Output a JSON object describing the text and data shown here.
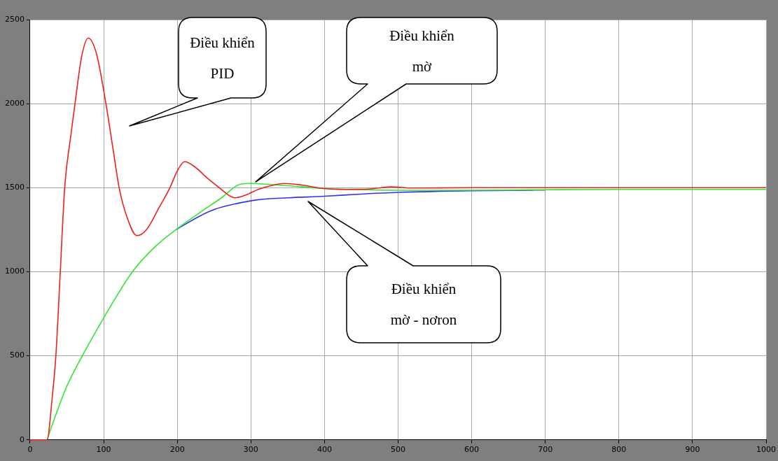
{
  "chart_data": {
    "type": "line",
    "xlim": [
      0,
      1000
    ],
    "ylim": [
      0,
      2500
    ],
    "xticks": [
      0,
      100,
      200,
      300,
      400,
      500,
      600,
      700,
      800,
      900,
      1000
    ],
    "yticks": [
      0,
      500,
      1000,
      1500,
      2000,
      2500
    ],
    "grid": true,
    "legend": false,
    "marker": "none",
    "line_style": "solid",
    "series": [
      {
        "color": "#ee2020",
        "x": [
          0,
          23,
          30,
          35,
          41,
          47,
          55,
          61,
          70,
          79,
          90,
          103,
          112,
          121,
          132,
          145,
          158,
          175,
          190,
          200,
          210,
          225,
          240,
          257,
          270,
          278,
          295,
          310,
          330,
          345,
          370,
          400,
          430,
          460,
          490,
          520,
          600,
          700,
          800,
          900,
          1000
        ],
        "values": [
          0,
          0,
          250,
          500,
          1000,
          1500,
          1800,
          2000,
          2280,
          2390,
          2300,
          2000,
          1750,
          1500,
          1320,
          1215,
          1250,
          1380,
          1500,
          1600,
          1655,
          1620,
          1560,
          1500,
          1455,
          1440,
          1460,
          1490,
          1515,
          1525,
          1515,
          1495,
          1490,
          1492,
          1505,
          1498,
          1500,
          1500,
          1500,
          1500,
          1500
        ]
      },
      {
        "color": "#33e633",
        "x": [
          23,
          35,
          50,
          71,
          90,
          110,
          139,
          170,
          198,
          230,
          260,
          285,
          300,
          315,
          350,
          400,
          450,
          500,
          600,
          700,
          800,
          900,
          1000
        ],
        "values": [
          0,
          150,
          320,
          500,
          650,
          800,
          1000,
          1150,
          1250,
          1350,
          1440,
          1520,
          1525,
          1522,
          1512,
          1495,
          1488,
          1485,
          1485,
          1488,
          1490,
          1490,
          1490
        ]
      },
      {
        "color": "#3333ee",
        "x": [
          198,
          230,
          250,
          280,
          309,
          350,
          400,
          450,
          500,
          600,
          700
        ],
        "values": [
          1250,
          1330,
          1370,
          1405,
          1428,
          1440,
          1449,
          1462,
          1472,
          1482,
          1486
        ]
      }
    ],
    "annotations": [
      "Điều khiển PID",
      "Điều khiển mờ",
      "Điều khiển mờ - nơron"
    ]
  }
}
